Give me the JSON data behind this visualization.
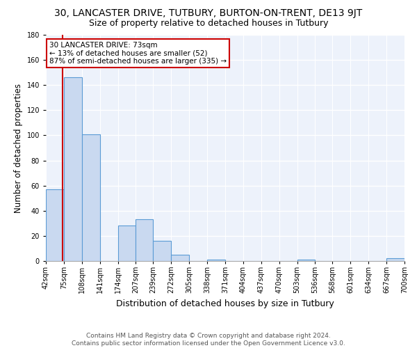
{
  "title_line1": "30, LANCASTER DRIVE, TUTBURY, BURTON-ON-TRENT, DE13 9JT",
  "title_line2": "Size of property relative to detached houses in Tutbury",
  "xlabel": "Distribution of detached houses by size in Tutbury",
  "ylabel": "Number of detached properties",
  "footer": "Contains HM Land Registry data © Crown copyright and database right 2024.\nContains public sector information licensed under the Open Government Licence v3.0.",
  "bin_edges": [
    42,
    75,
    108,
    141,
    174,
    207,
    239,
    272,
    305,
    338,
    371,
    404,
    437,
    470,
    503,
    536,
    568,
    601,
    634,
    667,
    700
  ],
  "bar_heights": [
    57,
    146,
    101,
    0,
    28,
    33,
    16,
    5,
    0,
    1,
    0,
    0,
    0,
    0,
    1,
    0,
    0,
    0,
    0,
    2
  ],
  "bar_color": "#c9d9f0",
  "bar_edge_color": "#5b9bd5",
  "property_size": 73,
  "red_line_color": "#cc0000",
  "annotation_text": "30 LANCASTER DRIVE: 73sqm\n← 13% of detached houses are smaller (52)\n87% of semi-detached houses are larger (335) →",
  "annotation_box_color": "#ffffff",
  "annotation_box_edge_color": "#cc0000",
  "ylim": [
    0,
    180
  ],
  "yticks": [
    0,
    20,
    40,
    60,
    80,
    100,
    120,
    140,
    160,
    180
  ],
  "bg_color": "#edf2fb",
  "grid_color": "#ffffff",
  "title1_fontsize": 10,
  "title2_fontsize": 9,
  "xlabel_fontsize": 9,
  "ylabel_fontsize": 8.5,
  "tick_fontsize": 7,
  "footer_fontsize": 6.5,
  "ann_fontsize": 7.5
}
